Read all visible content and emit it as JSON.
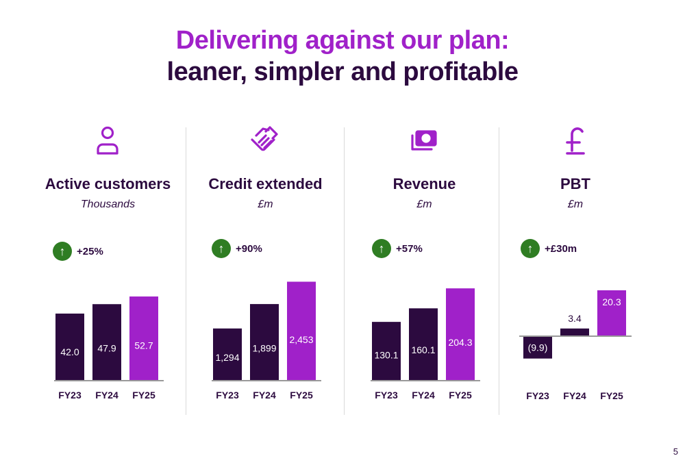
{
  "header": {
    "title_line1": "Delivering against our plan:",
    "title_line2": "leaner, simpler and profitable"
  },
  "page_number": "5",
  "colors": {
    "purple_bright": "#a021c9",
    "purple_dark": "#2c0a3f",
    "green": "#2f7d23",
    "axis": "#999999"
  },
  "panels": [
    {
      "title": "Active customers",
      "subtitle": "Thousands",
      "icon": "person-icon",
      "badge": {
        "arrow": "↑",
        "text": "+25%"
      }
    },
    {
      "title": "Credit extended",
      "subtitle": "£m",
      "icon": "handshake-icon",
      "badge": {
        "arrow": "↑",
        "text": "+90%"
      }
    },
    {
      "title": "Revenue",
      "subtitle": "£m",
      "icon": "money-icon",
      "badge": {
        "arrow": "↑",
        "text": "+57%"
      }
    },
    {
      "title": "PBT",
      "subtitle": "£m",
      "icon": "pound-icon",
      "badge": {
        "arrow": "↑",
        "text": "+£30m"
      }
    }
  ],
  "chart_data": [
    {
      "type": "bar",
      "title": "Active customers",
      "categories": [
        "FY23",
        "FY24",
        "FY25"
      ],
      "values": [
        42.0,
        47.9,
        52.7
      ],
      "labels": [
        "42.0",
        "47.9",
        "52.7"
      ],
      "ylim": [
        0,
        60
      ]
    },
    {
      "type": "bar",
      "title": "Credit extended",
      "categories": [
        "FY23",
        "FY24",
        "FY25"
      ],
      "values": [
        1294,
        1899,
        2453
      ],
      "labels": [
        "1,294",
        "1,899",
        "2,453"
      ],
      "ylim": [
        0,
        2800
      ]
    },
    {
      "type": "bar",
      "title": "Revenue",
      "categories": [
        "FY23",
        "FY24",
        "FY25"
      ],
      "values": [
        130.1,
        160.1,
        204.3
      ],
      "labels": [
        "130.1",
        "160.1",
        "204.3"
      ],
      "ylim": [
        0,
        250
      ]
    },
    {
      "type": "bar",
      "title": "PBT",
      "categories": [
        "FY23",
        "FY24",
        "FY25"
      ],
      "values": [
        -9.9,
        3.4,
        20.3
      ],
      "labels": [
        "(9.9)",
        "3.4",
        "20.3"
      ],
      "ylim": [
        -15,
        30
      ]
    }
  ]
}
